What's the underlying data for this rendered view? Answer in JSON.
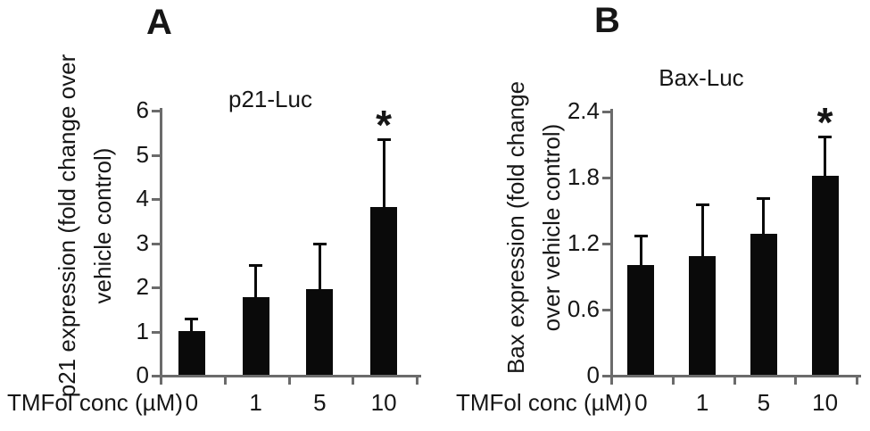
{
  "figure": {
    "background_color": "#ffffff",
    "text_color": "#161616",
    "axis_color": "#6b6b6b",
    "bar_color": "#0a0a0a",
    "error_bar_color": "#0a0a0a"
  },
  "chart_data": [
    {
      "type": "bar",
      "panel_letter": "A",
      "title": "p21-Luc",
      "ylabel": "p21 expression (fold change over vehicle control)",
      "ylabel_lines": [
        "p21 expression (fold change over",
        "vehicle control)"
      ],
      "xlabel": "TMFol conc (µM)",
      "categories": [
        "0",
        "1",
        "5",
        "10"
      ],
      "values": [
        1.0,
        1.75,
        1.93,
        3.8
      ],
      "errors_upper": [
        0.3,
        0.76,
        1.06,
        1.56
      ],
      "significance": [
        "",
        "",
        "",
        "*"
      ],
      "ytick_values": [
        0,
        1,
        2,
        3,
        4,
        5,
        6
      ],
      "ytick_labels": [
        "0",
        "1",
        "2",
        "3",
        "4",
        "5",
        "6"
      ],
      "ylim": [
        0,
        6
      ],
      "grid": false,
      "legend": "none",
      "bar_color": "#0a0a0a"
    },
    {
      "type": "bar",
      "panel_letter": "B",
      "title": "Bax-Luc",
      "ylabel": "Bax expression (fold change over vehicle control)",
      "ylabel_lines": [
        "Bax expression (fold change",
        "over vehicle control)"
      ],
      "xlabel": "TMFol conc (µM)",
      "categories": [
        "0",
        "1",
        "5",
        "10"
      ],
      "values": [
        1.0,
        1.08,
        1.28,
        1.81
      ],
      "errors_upper": [
        0.27,
        0.48,
        0.33,
        0.36
      ],
      "significance": [
        "",
        "",
        "",
        "*"
      ],
      "ytick_values": [
        0,
        0.6,
        1.2,
        1.8,
        2.4
      ],
      "ytick_labels": [
        "0",
        "0.6",
        "1.2",
        "1.8",
        "2.4"
      ],
      "ylim": [
        0,
        2.4
      ],
      "grid": false,
      "legend": "none",
      "bar_color": "#0a0a0a"
    }
  ]
}
